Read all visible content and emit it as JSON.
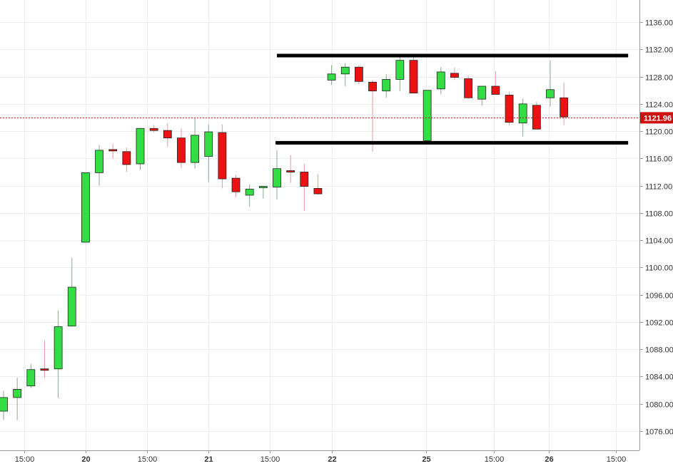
{
  "chart_data": {
    "type": "candlestick",
    "title": "",
    "xlabel": "",
    "ylabel": "",
    "ylim": [
      1072.5,
      1139.5
    ],
    "y_ticks": [
      1076.0,
      1080.0,
      1084.0,
      1088.0,
      1092.0,
      1096.0,
      1100.0,
      1104.0,
      1108.0,
      1112.0,
      1116.0,
      1120.0,
      1124.0,
      1128.0,
      1132.0,
      1136.0
    ],
    "y_tick_labels": [
      "1076.00",
      "1080.00",
      "1084.00",
      "1088.00",
      "1092.00",
      "1096.00",
      "1100.00",
      "1104.00",
      "1108.00",
      "1112.00",
      "1116.00",
      "1120.00",
      "1124.00",
      "1128.00",
      "1132.00",
      "1136.00"
    ],
    "x_tick_labels": [
      {
        "label": "15:00",
        "bar": 1.5,
        "day": false
      },
      {
        "label": "20",
        "bar": 6,
        "day": true
      },
      {
        "label": "15:00",
        "bar": 10.5,
        "day": false
      },
      {
        "label": "21",
        "bar": 15,
        "day": true
      },
      {
        "label": "15:00",
        "bar": 19.5,
        "day": false
      },
      {
        "label": "22",
        "bar": 24,
        "day": true
      },
      {
        "label": "25",
        "bar": 30.9,
        "day": true
      },
      {
        "label": "15:00",
        "bar": 35.9,
        "day": false
      },
      {
        "label": "26",
        "bar": 39.9,
        "day": true
      },
      {
        "label": "15:00",
        "bar": 44.8,
        "day": false
      }
    ],
    "grid": true,
    "up_color": "#33dd44",
    "down_color": "#ee1111",
    "candles": [
      {
        "bar": 0,
        "open": 1078.9,
        "high": 1081.9,
        "low": 1077.6,
        "close": 1080.9
      },
      {
        "bar": 1,
        "open": 1080.9,
        "high": 1083.8,
        "low": 1077.6,
        "close": 1082.1
      },
      {
        "bar": 2,
        "open": 1082.6,
        "high": 1085.8,
        "low": 1082.3,
        "close": 1085.0
      },
      {
        "bar": 3,
        "open": 1085.0,
        "high": 1089.3,
        "low": 1083.8,
        "close": 1084.9
      },
      {
        "bar": 4,
        "open": 1085.1,
        "high": 1093.7,
        "low": 1080.8,
        "close": 1091.3
      },
      {
        "bar": 5,
        "open": 1091.4,
        "high": 1101.4,
        "low": 1091.3,
        "close": 1097.1
      },
      {
        "bar": 6,
        "open": 1103.7,
        "high": 1113.9,
        "low": 1103.7,
        "close": 1113.9
      },
      {
        "bar": 7,
        "open": 1113.9,
        "high": 1118.0,
        "low": 1112.0,
        "close": 1117.2
      },
      {
        "bar": 8,
        "open": 1117.2,
        "high": 1118.1,
        "low": 1116.0,
        "close": 1117.0
      },
      {
        "bar": 9,
        "open": 1117.0,
        "high": 1117.6,
        "low": 1114.0,
        "close": 1115.1
      },
      {
        "bar": 10,
        "open": 1115.2,
        "high": 1120.5,
        "low": 1114.3,
        "close": 1120.4
      },
      {
        "bar": 11,
        "open": 1120.4,
        "high": 1120.9,
        "low": 1119.8,
        "close": 1120.1
      },
      {
        "bar": 12,
        "open": 1120.1,
        "high": 1121.2,
        "low": 1117.7,
        "close": 1119.0
      },
      {
        "bar": 13,
        "open": 1119.0,
        "high": 1120.4,
        "low": 1114.6,
        "close": 1115.4
      },
      {
        "bar": 14,
        "open": 1115.4,
        "high": 1121.9,
        "low": 1114.5,
        "close": 1119.4
      },
      {
        "bar": 15,
        "open": 1116.3,
        "high": 1121.0,
        "low": 1112.5,
        "close": 1119.9
      },
      {
        "bar": 16,
        "open": 1119.8,
        "high": 1121.0,
        "low": 1111.6,
        "close": 1113.0
      },
      {
        "bar": 17,
        "open": 1113.1,
        "high": 1113.6,
        "low": 1110.3,
        "close": 1111.1
      },
      {
        "bar": 18,
        "open": 1110.6,
        "high": 1112.2,
        "low": 1108.9,
        "close": 1111.5
      },
      {
        "bar": 19,
        "open": 1111.7,
        "high": 1112.0,
        "low": 1110.1,
        "close": 1111.8
      },
      {
        "bar": 20,
        "open": 1111.8,
        "high": 1117.2,
        "low": 1110.0,
        "close": 1114.5
      },
      {
        "bar": 21,
        "open": 1114.1,
        "high": 1116.5,
        "low": 1112.4,
        "close": 1113.9
      },
      {
        "bar": 22,
        "open": 1114.0,
        "high": 1115.2,
        "low": 1108.3,
        "close": 1111.9
      },
      {
        "bar": 23,
        "open": 1111.6,
        "high": 1113.7,
        "low": 1110.7,
        "close": 1110.8
      },
      {
        "bar": 24,
        "open": 1127.5,
        "high": 1129.7,
        "low": 1126.8,
        "close": 1128.4
      },
      {
        "bar": 25,
        "open": 1128.4,
        "high": 1130.0,
        "low": 1126.6,
        "close": 1129.4
      },
      {
        "bar": 26,
        "open": 1129.4,
        "high": 1129.7,
        "low": 1126.9,
        "close": 1127.3
      },
      {
        "bar": 27,
        "open": 1127.2,
        "high": 1127.5,
        "low": 1117.0,
        "close": 1125.9
      },
      {
        "bar": 28,
        "open": 1125.9,
        "high": 1128.4,
        "low": 1124.9,
        "close": 1127.6
      },
      {
        "bar": 29,
        "open": 1127.6,
        "high": 1131.1,
        "low": 1125.9,
        "close": 1130.4
      },
      {
        "bar": 30,
        "open": 1130.4,
        "high": 1131.1,
        "low": 1125.6,
        "close": 1125.6
      },
      {
        "bar": 31,
        "open": 1118.6,
        "high": 1126.0,
        "low": 1118.6,
        "close": 1126.0
      },
      {
        "bar": 32,
        "open": 1126.2,
        "high": 1129.4,
        "low": 1125.4,
        "close": 1128.7
      },
      {
        "bar": 33,
        "open": 1128.5,
        "high": 1129.3,
        "low": 1127.5,
        "close": 1127.9
      },
      {
        "bar": 34,
        "open": 1127.7,
        "high": 1128.1,
        "low": 1124.7,
        "close": 1124.9
      },
      {
        "bar": 35,
        "open": 1124.7,
        "high": 1126.6,
        "low": 1123.7,
        "close": 1126.6
      },
      {
        "bar": 36,
        "open": 1126.6,
        "high": 1128.8,
        "low": 1125.4,
        "close": 1125.4
      },
      {
        "bar": 37,
        "open": 1125.3,
        "high": 1125.8,
        "low": 1120.8,
        "close": 1121.3
      },
      {
        "bar": 38,
        "open": 1121.2,
        "high": 1124.8,
        "low": 1119.2,
        "close": 1124.0
      },
      {
        "bar": 39,
        "open": 1123.8,
        "high": 1124.3,
        "low": 1120.3,
        "close": 1120.3
      },
      {
        "bar": 40,
        "open": 1124.9,
        "high": 1130.4,
        "low": 1123.6,
        "close": 1126.1
      },
      {
        "bar": 41,
        "open": 1124.9,
        "high": 1127.1,
        "low": 1120.9,
        "close": 1122.1
      }
    ],
    "horizontal_lines": [
      {
        "price": 1131.1,
        "bar_start": 20.0,
        "bar_end": 45.7,
        "color": "#000000"
      },
      {
        "price": 1118.3,
        "bar_start": 19.9,
        "bar_end": 45.7,
        "color": "#000000"
      }
    ],
    "current_price": {
      "value": 1121.96,
      "label": "1121.96",
      "color": "#cc1111"
    }
  }
}
